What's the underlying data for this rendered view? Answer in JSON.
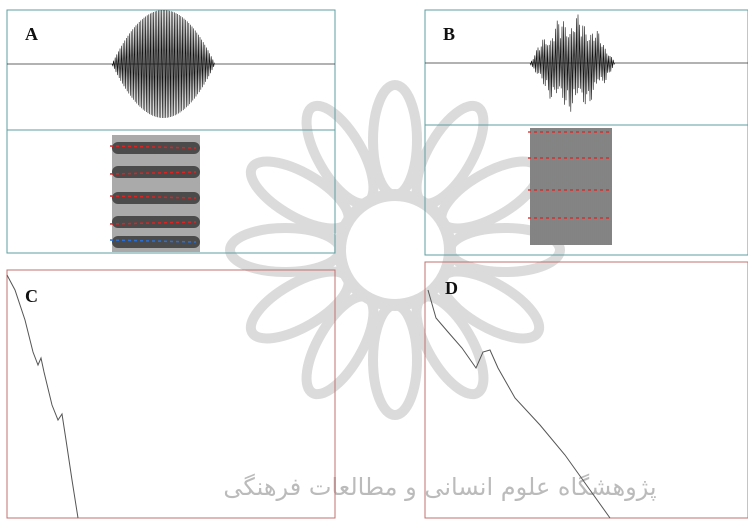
{
  "panels": [
    {
      "label": "A"
    },
    {
      "label": "B"
    },
    {
      "label": "C"
    },
    {
      "label": "D"
    }
  ],
  "watermark": "پژوهشگاه علوم انسانی و مطالعات فرهنگی"
}
